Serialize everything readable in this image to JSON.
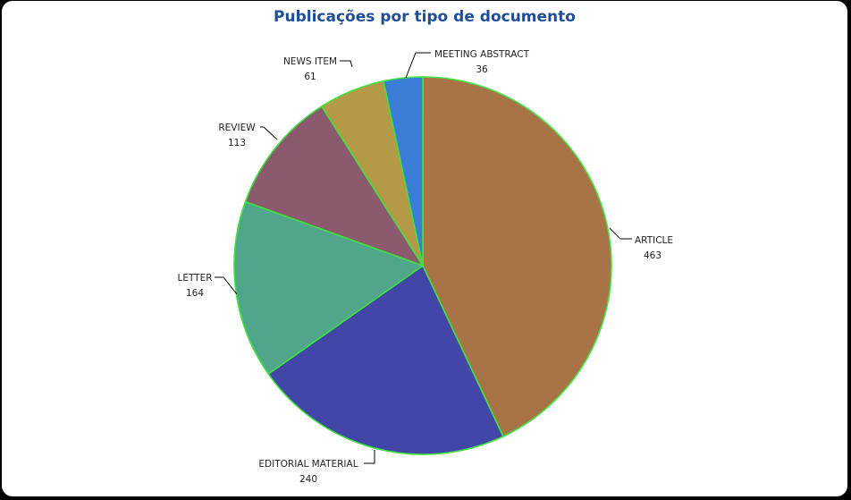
{
  "chart_data": {
    "type": "pie",
    "title": "Publicações por tipo de documento",
    "slices": [
      {
        "label": "ARTICLE",
        "value": 463,
        "color": "#a87347"
      },
      {
        "label": "EDITORIAL MATERIAL",
        "value": 240,
        "color": "#4247a7"
      },
      {
        "label": "LETTER",
        "value": 164,
        "color": "#4fa68b"
      },
      {
        "label": "REVIEW",
        "value": 113,
        "color": "#8c5a6e"
      },
      {
        "label": "NEWS ITEM",
        "value": 61,
        "color": "#b49a47"
      },
      {
        "label": "MEETING ABSTRACT",
        "value": 36,
        "color": "#3b7ed8"
      }
    ]
  }
}
